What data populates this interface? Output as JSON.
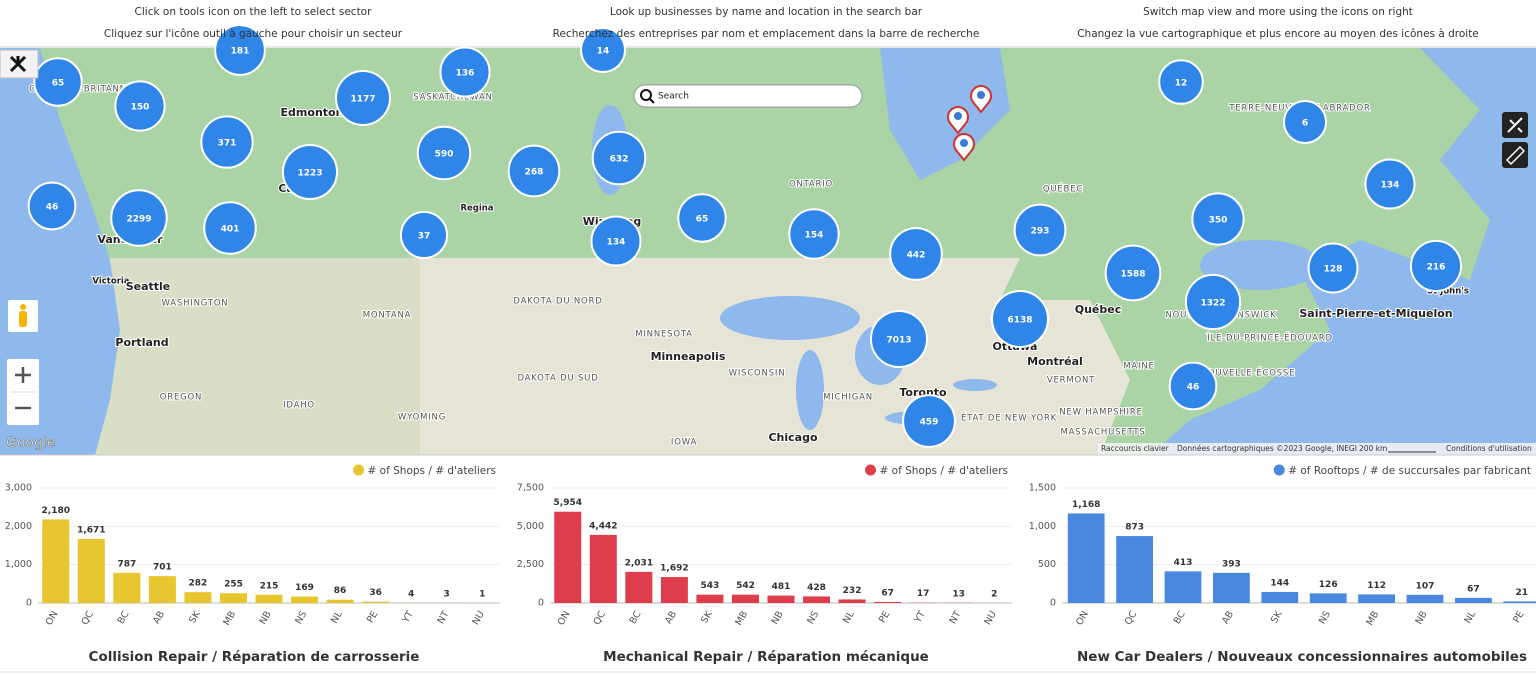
{
  "header": {
    "rows": [
      [
        "Click on tools icon on the left to select sector",
        "Look up businesses by name and location in the search bar",
        "Switch map view and more using the icons on right"
      ],
      [
        "Cliquez sur l'icône outil à gauche pour choisir un secteur",
        "Recherchez des entreprises par nom et emplacement dans la barre de recherche",
        "Changez la vue cartographique et plus encore au moyen des icônes à droite"
      ]
    ]
  },
  "map": {
    "search_placeholder": "Search",
    "google": "Google",
    "clusters": [
      181,
      65,
      150,
      1177,
      136,
      14,
      371,
      1223,
      590,
      268,
      632,
      46,
      2299,
      401,
      37,
      134,
      65,
      154,
      442,
      293,
      12,
      6,
      134,
      350,
      1588,
      128,
      216,
      1322,
      6138,
      7013,
      46,
      459
    ],
    "labels": [
      "Edmonton",
      "SASKATCHEWAN",
      "Calgary",
      "Regina",
      "Vancouver",
      "Victoria",
      "Seattle",
      "WASHINGTON",
      "MONTANA",
      "Portland",
      "OREGON",
      "IDAHO",
      "WYOMING",
      "DAKOTA DU NORD",
      "DAKOTA DU SUD",
      "MINNESOTA",
      "Minneapolis",
      "WISCONSIN",
      "MICHIGAN",
      "Chicago",
      "IOWA",
      "Winnipeg",
      "ONTARIO",
      "QUÉBEC",
      "TERRE-NEUVE-ET-LABRADOR",
      "Québec",
      "Ottawa",
      "Montréal",
      "Toronto",
      "VERMONT",
      "MAINE",
      "NEW HAMPSHIRE",
      "MASSACHUSETTS",
      "ÉTAT DE NEW YORK",
      "NOUVEAU-BRUNSWICK",
      "ÎLE-DU-PRINCE-ÉDOUARD",
      "NOUVELLE-ÉCOSSE",
      "Saint-Pierre-et-Miquelon",
      "St John's",
      "COLOMBIE-BRITANNIQUE"
    ],
    "footer": [
      "Raccourcis clavier",
      "Données cartographiques ©2023 Google, INEGI",
      "200 km",
      "Conditions d'utilisation"
    ]
  },
  "chart_data": [
    {
      "type": "bar",
      "title": "Collision Repair / Réparation de carrosserie",
      "legend": "# of Shops / # d'ateliers",
      "color": "#e8c630",
      "categories": [
        "ON",
        "QC",
        "BC",
        "AB",
        "SK",
        "MB",
        "NB",
        "NS",
        "NL",
        "PE",
        "YT",
        "NT",
        "NU"
      ],
      "values": [
        2180,
        1671,
        787,
        701,
        282,
        255,
        215,
        169,
        86,
        36,
        4,
        3,
        1
      ],
      "value_labels": [
        "2,180",
        "1,671",
        "787",
        "701",
        "282",
        "255",
        "215",
        "169",
        "86",
        "36",
        "4",
        "3",
        "1"
      ],
      "ylim": [
        0,
        3000
      ],
      "yticks": [
        0,
        {
          "value": 1000,
          "label": "1,000"
        },
        {
          "value": 2000,
          "label": "2,000"
        },
        {
          "value": 3000,
          "label": "3,000"
        }
      ],
      "grid": true
    },
    {
      "type": "bar",
      "title": "Mechanical Repair / Réparation mécanique",
      "legend": "# of Shops / # d'ateliers",
      "color": "#de3e4b",
      "categories": [
        "ON",
        "QC",
        "BC",
        "AB",
        "SK",
        "MB",
        "NB",
        "NS",
        "NL",
        "PE",
        "YT",
        "NT",
        "NU"
      ],
      "values": [
        5954,
        4442,
        2031,
        1692,
        543,
        542,
        481,
        428,
        232,
        67,
        17,
        13,
        2
      ],
      "value_labels": [
        "5,954",
        "4,442",
        "2,031",
        "1,692",
        "543",
        "542",
        "481",
        "428",
        "232",
        "67",
        "17",
        "13",
        "2"
      ],
      "ylim": [
        0,
        7500
      ],
      "yticks": [
        0,
        {
          "value": 2500,
          "label": "2,500"
        },
        {
          "value": 5000,
          "label": "5,000"
        },
        {
          "value": 7500,
          "label": "7,500"
        }
      ],
      "grid": true
    },
    {
      "type": "bar",
      "title": "New Car Dealers / Nouveaux concessionnaires automobiles",
      "legend": "# of Rooftops / # de succursales par fabricant",
      "color": "#4a88e0",
      "categories": [
        "ON",
        "QC",
        "BC",
        "AB",
        "SK",
        "NS",
        "MB",
        "NB",
        "NL",
        "PE"
      ],
      "values": [
        1168,
        873,
        413,
        393,
        144,
        126,
        112,
        107,
        67,
        21
      ],
      "value_labels": [
        "1,168",
        "873",
        "413",
        "393",
        "144",
        "126",
        "112",
        "107",
        "67",
        "21"
      ],
      "ylim": [
        0,
        1500
      ],
      "yticks": [
        0,
        500,
        {
          "value": 1000,
          "label": "1,000"
        },
        {
          "value": 1500,
          "label": "1,500"
        }
      ],
      "grid": true
    }
  ]
}
